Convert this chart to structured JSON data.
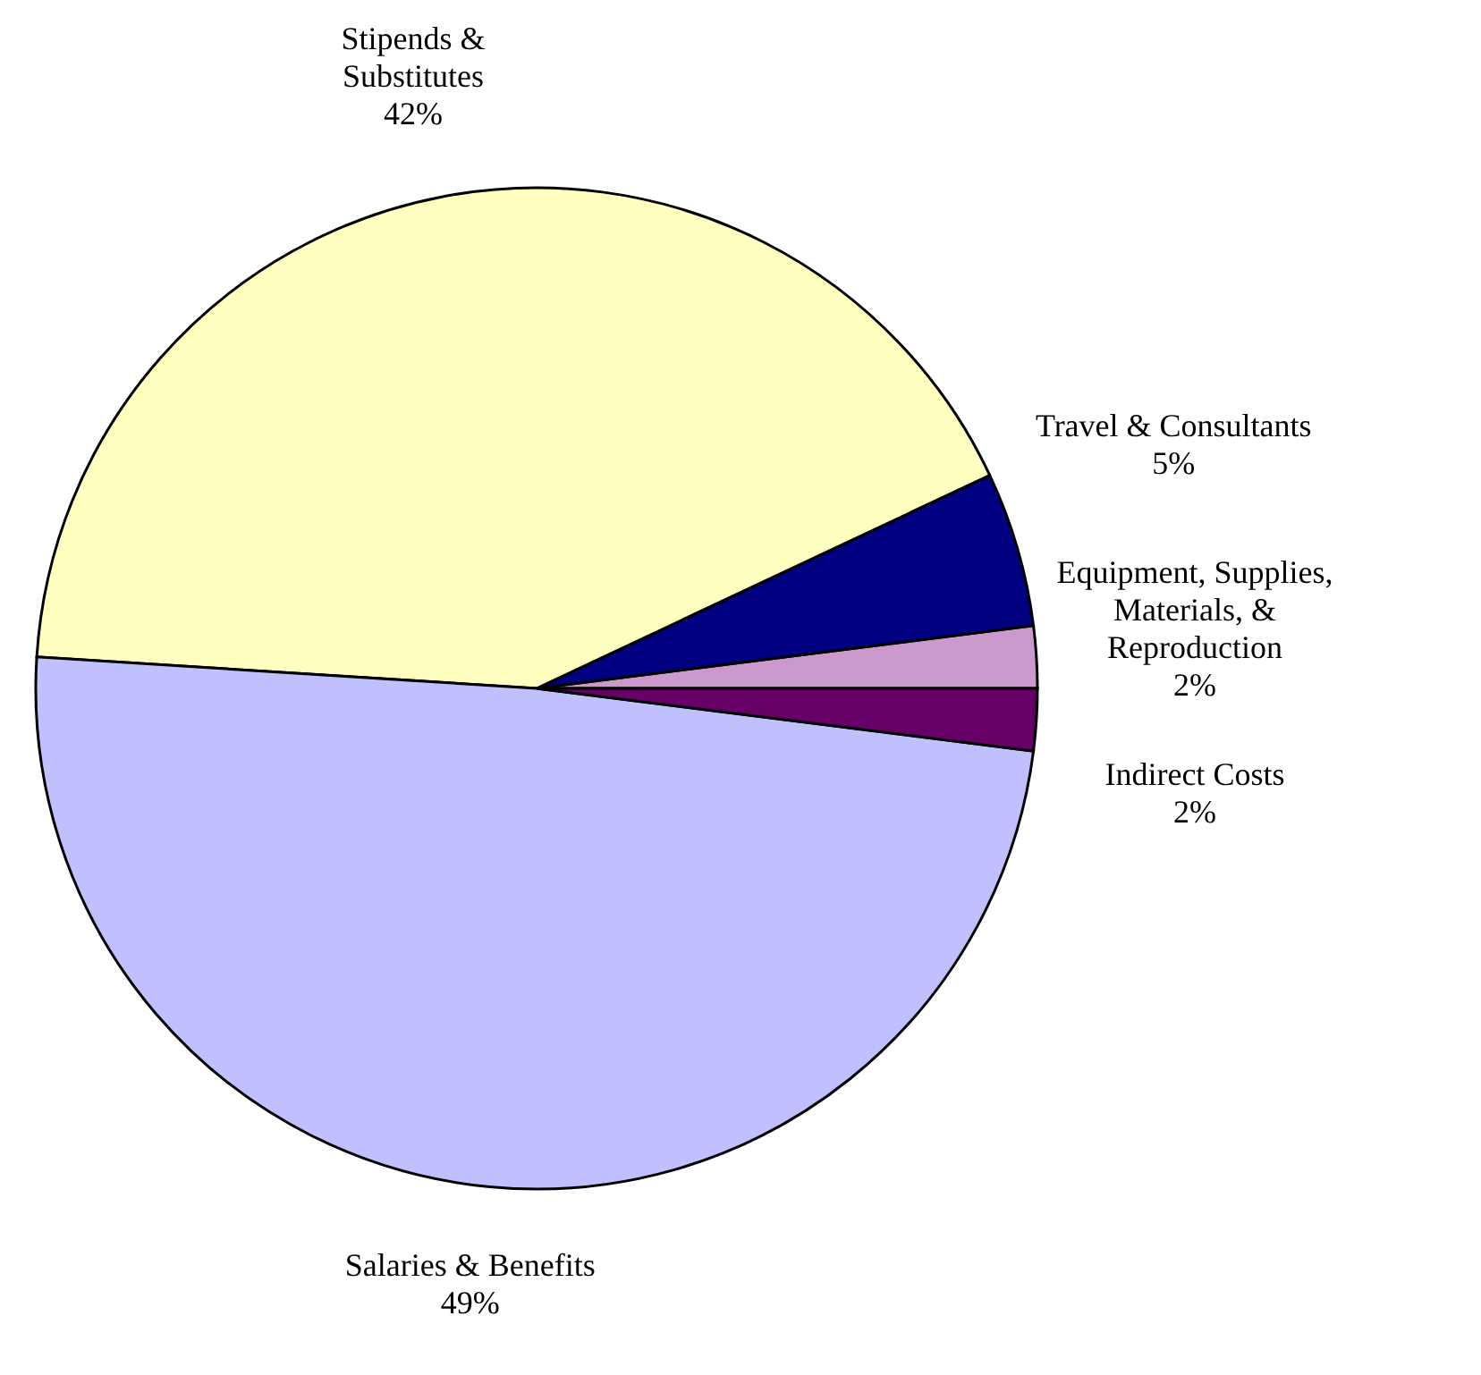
{
  "chart_data": {
    "type": "pie",
    "categories": [
      "Equipment, Supplies, Materials, & Reproduction",
      "Travel & Consultants",
      "Stipends & Substitutes",
      "Salaries & Benefits",
      "Indirect Costs"
    ],
    "values": [
      2,
      5,
      42,
      49,
      2
    ],
    "value_labels": [
      "2%",
      "5%",
      "42%",
      "49%",
      "2%"
    ],
    "colors": [
      "#cc99cc",
      "#000080",
      "#ffffc0",
      "#c0c0ff",
      "#660066"
    ]
  }
}
